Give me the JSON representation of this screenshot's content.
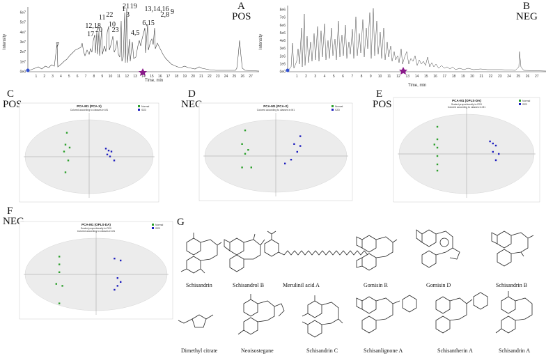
{
  "panels": {
    "A": {
      "letter": "A",
      "mode": "POS",
      "ylabel": "Intensity",
      "xlabel": "Time, min",
      "yticks": [
        "0e0",
        "1e7",
        "2e7",
        "3e7",
        "4e7",
        "5e7",
        "6e7"
      ],
      "xticks": [
        "1",
        "2",
        "3",
        "4",
        "5",
        "6",
        "7",
        "8",
        "9",
        "10",
        "11",
        "12",
        "13",
        "14",
        "15",
        "16",
        "17",
        "18",
        "19",
        "20",
        "21",
        "22",
        "23",
        "24",
        "25",
        "26",
        "27"
      ],
      "peaks": [
        {
          "label": "7",
          "t": 3.6
        },
        {
          "label": "12,18",
          "t": 7.9
        },
        {
          "label": "17",
          "t": 7.6
        },
        {
          "label": "20",
          "t": 8.6
        },
        {
          "label": "11",
          "t": 9.0
        },
        {
          "label": "22",
          "t": 9.9
        },
        {
          "label": "10",
          "t": 10.2
        },
        {
          "label": "23",
          "t": 10.6
        },
        {
          "label": "1",
          "t": 11.6
        },
        {
          "label": "21",
          "t": 11.9
        },
        {
          "label": "3",
          "t": 12.1
        },
        {
          "label": "19",
          "t": 12.8
        },
        {
          "label": "4,5",
          "t": 13.0
        },
        {
          "label": "6,15",
          "t": 14.6
        },
        {
          "label": "13,14,16",
          "t": 15.6
        },
        {
          "label": "2,8",
          "t": 16.6
        },
        {
          "label": "9",
          "t": 17.5
        }
      ]
    },
    "B": {
      "letter": "B",
      "mode": "NEG",
      "ylabel": "Intensity",
      "xlabel": "Time, min",
      "yticks": [
        "0e0",
        "1e6",
        "2e6",
        "3e6",
        "4e6",
        "5e6",
        "6e6",
        "7e6",
        "8e6"
      ],
      "xticks": [
        "1",
        "2",
        "3",
        "4",
        "5",
        "6",
        "7",
        "8",
        "9",
        "10",
        "11",
        "12",
        "13",
        "14",
        "15",
        "16",
        "17",
        "18",
        "19",
        "20",
        "21",
        "22",
        "23",
        "24",
        "25",
        "26",
        "27"
      ]
    },
    "C": {
      "letter": "C",
      "mode": "POS",
      "title1": "PCA-M1 (PCA-X)",
      "title2": "Colored according to classes in M1",
      "legend": [
        "Normal",
        "SZD"
      ]
    },
    "D": {
      "letter": "D",
      "mode": "NEG",
      "title1": "PCA-M1 (PCA-X)",
      "title2": "Colored according to classes in M1",
      "legend": [
        "Normal",
        "SZD"
      ]
    },
    "E": {
      "letter": "E",
      "mode": "POS",
      "title1": "PCA-M1 (OPLS-DA)",
      "title2": "Scaled proportionally to R2X",
      "title3": "Colored according to classes in M1",
      "legend": [
        "Normal",
        "SZD"
      ]
    },
    "F": {
      "letter": "F",
      "mode": "NEG",
      "title1": "PCA-M1 (OPLS-DA)",
      "title2": "Scaled proportionally to R2X",
      "title3": "Colored according to classes in M1",
      "legend": [
        "Normal",
        "SZD"
      ]
    },
    "G": {
      "letter": "G",
      "compounds": [
        "Schisandrin",
        "Schisandrol B",
        "Merulinil acid A",
        "Gomisin R",
        "Gomisin D",
        "Schisandrin B",
        "Dimethyl citrate",
        "Neoisostegane",
        "Schisandrin C",
        "Schisanlignone A",
        "Schisantherin A",
        "Schisandrin A"
      ]
    }
  },
  "colors": {
    "normal": "#2ca02c",
    "szd": "#1f1fbf",
    "marker": "#8a1a8a"
  }
}
